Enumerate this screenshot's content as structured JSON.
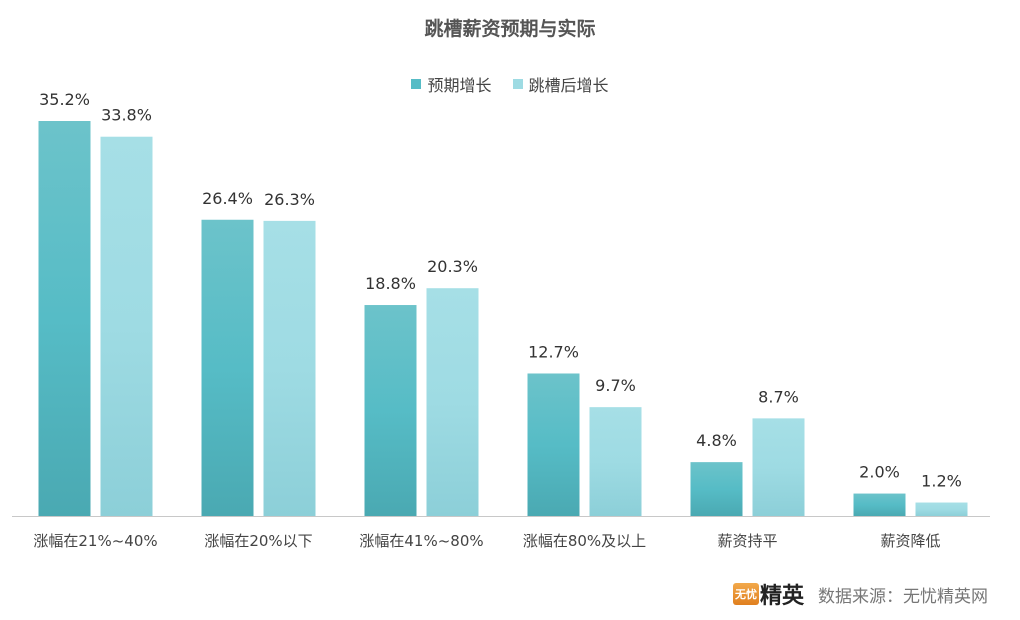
{
  "chart_data": {
    "type": "bar",
    "title": "跳槽薪资预期与实际",
    "categories": [
      "涨幅在21%~40%",
      "涨幅在20%以下",
      "涨幅在41%~80%",
      "涨幅在80%及以上",
      "薪资持平",
      "薪资降低"
    ],
    "series": [
      {
        "name": "预期增长",
        "values": [
          35.2,
          26.4,
          18.8,
          12.7,
          4.8,
          2.0
        ],
        "labels": [
          "35.2%",
          "26.4%",
          "18.8%",
          "12.7%",
          "4.8%",
          "2.0%"
        ],
        "color": "#56bcc6"
      },
      {
        "name": "跳槽后增长",
        "values": [
          33.8,
          26.3,
          20.3,
          9.7,
          8.7,
          1.2
        ],
        "labels": [
          "33.8%",
          "26.3%",
          "20.3%",
          "9.7%",
          "8.7%",
          "1.2%"
        ],
        "color": "#9edbe3"
      }
    ],
    "ylim": [
      0,
      40
    ],
    "grid": false,
    "legend": "top-center",
    "xlabel": "",
    "ylabel": ""
  },
  "source": {
    "text": "数据来源：无忧精英网",
    "logo_box": "无忧",
    "logo_text": "精英"
  }
}
